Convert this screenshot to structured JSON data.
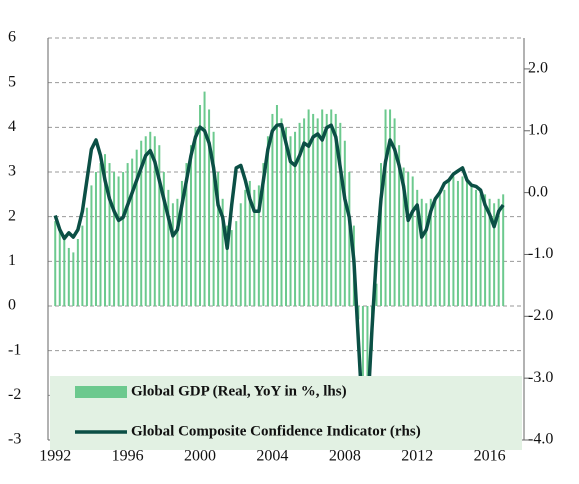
{
  "chart_data": {
    "type": "combo",
    "x": [
      1992,
      1992.25,
      1992.5,
      1992.75,
      1993,
      1993.25,
      1993.5,
      1993.75,
      1994,
      1994.25,
      1994.5,
      1994.75,
      1995,
      1995.25,
      1995.5,
      1995.75,
      1996,
      1996.25,
      1996.5,
      1996.75,
      1997,
      1997.25,
      1997.5,
      1997.75,
      1998,
      1998.25,
      1998.5,
      1998.75,
      1999,
      1999.25,
      1999.5,
      1999.75,
      2000,
      2000.25,
      2000.5,
      2000.75,
      2001,
      2001.25,
      2001.5,
      2001.75,
      2002,
      2002.25,
      2002.5,
      2002.75,
      2003,
      2003.25,
      2003.5,
      2003.75,
      2004,
      2004.25,
      2004.5,
      2004.75,
      2005,
      2005.25,
      2005.5,
      2005.75,
      2006,
      2006.25,
      2006.5,
      2006.75,
      2007,
      2007.25,
      2007.5,
      2007.75,
      2008,
      2008.25,
      2008.5,
      2008.75,
      2009,
      2009.25,
      2009.5,
      2009.75,
      2010,
      2010.25,
      2010.5,
      2010.75,
      2011,
      2011.25,
      2011.5,
      2011.75,
      2012,
      2012.25,
      2012.5,
      2012.75,
      2013,
      2013.25,
      2013.5,
      2013.75,
      2014,
      2014.25,
      2014.5,
      2014.75,
      2015,
      2015.25,
      2015.5,
      2015.75,
      2016,
      2016.25,
      2016.5,
      2016.75
    ],
    "series": [
      {
        "name": "Global GDP (Real, YoY in %, lhs)",
        "type": "bar",
        "color": "#6cc98e",
        "values": [
          1.9,
          1.7,
          1.5,
          1.3,
          1.2,
          1.5,
          1.8,
          2.2,
          2.7,
          3.0,
          3.2,
          3.4,
          3.2,
          3.0,
          2.9,
          3.0,
          3.2,
          3.3,
          3.5,
          3.7,
          3.8,
          3.9,
          3.8,
          3.6,
          3.0,
          2.6,
          2.3,
          2.4,
          2.8,
          3.2,
          3.6,
          4.0,
          4.5,
          4.8,
          4.4,
          3.9,
          3.0,
          2.4,
          1.8,
          1.7,
          1.9,
          2.3,
          2.6,
          2.8,
          2.6,
          2.7,
          3.2,
          3.8,
          4.3,
          4.5,
          4.2,
          4.0,
          3.8,
          3.9,
          4.1,
          4.2,
          4.4,
          4.3,
          4.2,
          4.4,
          4.3,
          4.4,
          4.3,
          4.1,
          3.7,
          3.0,
          1.8,
          -0.3,
          -1.9,
          -1.8,
          -1.0,
          0.5,
          3.2,
          4.4,
          4.4,
          4.2,
          3.6,
          3.1,
          3.0,
          2.9,
          2.6,
          2.4,
          2.3,
          2.4,
          2.4,
          2.5,
          2.6,
          2.8,
          2.9,
          2.8,
          2.9,
          2.8,
          2.7,
          2.6,
          2.5,
          2.5,
          2.4,
          2.3,
          2.4,
          2.5
        ]
      },
      {
        "name": "Global Composite Confidence Indicator (rhs)",
        "type": "line",
        "axis": "y2",
        "color": "#0b4f45",
        "values": [
          -0.37,
          -0.6,
          -0.74,
          -0.65,
          -0.72,
          -0.6,
          -0.3,
          0.2,
          0.7,
          0.85,
          0.6,
          0.2,
          -0.1,
          -0.3,
          -0.45,
          -0.4,
          -0.2,
          0.0,
          0.2,
          0.4,
          0.6,
          0.68,
          0.5,
          0.2,
          -0.1,
          -0.4,
          -0.7,
          -0.6,
          -0.2,
          0.2,
          0.6,
          0.9,
          1.06,
          1.0,
          0.8,
          0.4,
          -0.2,
          -0.4,
          -0.9,
          -0.2,
          0.4,
          0.44,
          0.2,
          -0.1,
          -0.3,
          -0.3,
          0.2,
          0.7,
          1.0,
          1.09,
          1.1,
          0.8,
          0.5,
          0.44,
          0.6,
          0.8,
          0.75,
          0.9,
          0.95,
          0.85,
          1.05,
          1.09,
          0.9,
          0.4,
          -0.1,
          -0.4,
          -1.1,
          -2.4,
          -3.7,
          -3.6,
          -2.2,
          -1.0,
          -0.1,
          0.5,
          0.85,
          0.7,
          0.44,
          0.1,
          -0.45,
          -0.3,
          -0.2,
          -0.72,
          -0.6,
          -0.3,
          -0.1,
          0.0,
          0.15,
          0.2,
          0.3,
          0.35,
          0.4,
          0.2,
          0.12,
          0.1,
          0.04,
          -0.2,
          -0.35,
          -0.55,
          -0.3,
          -0.2
        ]
      }
    ],
    "xlim": [
      1991.6,
      2017.9
    ],
    "xticks": [
      1992,
      1996,
      2000,
      2004,
      2008,
      2012,
      2016
    ],
    "ylim": [
      -3,
      6
    ],
    "yticks": [
      -3,
      -2,
      -1,
      0,
      1,
      2,
      3,
      4,
      5,
      6
    ],
    "y2lim": [
      -4,
      2.5
    ],
    "y2ticks": [
      {
        "value": -4,
        "label": "-4.0"
      },
      {
        "value": -3,
        "label": "-3.0"
      },
      {
        "value": -2,
        "label": "-2.0"
      },
      {
        "value": -1,
        "label": "-1.0"
      },
      {
        "value": 0,
        "label": "0.0"
      },
      {
        "value": 1,
        "label": "1.0"
      },
      {
        "value": 2,
        "label": "2.0"
      }
    ],
    "grid": true,
    "legend": "bottom"
  }
}
